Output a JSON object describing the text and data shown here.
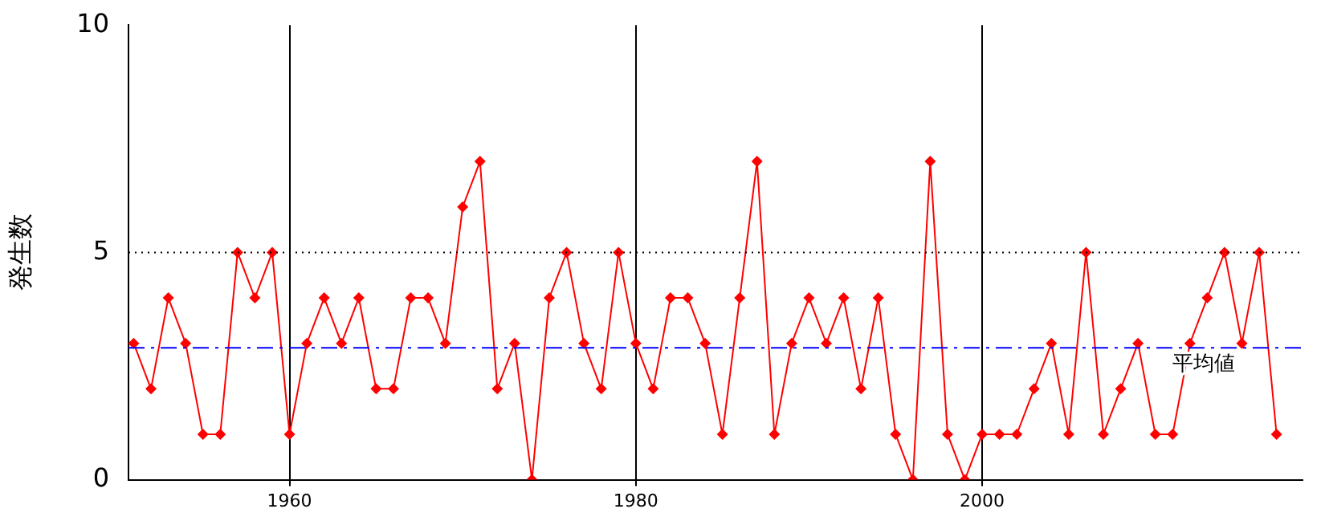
{
  "chart_data": {
    "type": "line",
    "ylabel": "発生数",
    "x": [
      1951,
      1952,
      1953,
      1954,
      1955,
      1956,
      1957,
      1958,
      1959,
      1960,
      1961,
      1962,
      1963,
      1964,
      1965,
      1966,
      1967,
      1968,
      1969,
      1970,
      1971,
      1972,
      1973,
      1974,
      1975,
      1976,
      1977,
      1978,
      1979,
      1980,
      1981,
      1982,
      1983,
      1984,
      1985,
      1986,
      1987,
      1988,
      1989,
      1990,
      1991,
      1992,
      1993,
      1994,
      1995,
      1996,
      1997,
      1998,
      1999,
      2000,
      2001,
      2002,
      2003,
      2004,
      2005,
      2006,
      2007,
      2008,
      2009,
      2010,
      2011,
      2012,
      2013,
      2014,
      2015,
      2016,
      2017
    ],
    "series": [
      {
        "color": "#ff0000",
        "values": [
          3,
          2,
          4,
          3,
          1,
          1,
          5,
          4,
          5,
          1,
          3,
          4,
          3,
          4,
          2,
          2,
          4,
          4,
          3,
          6,
          7,
          2,
          3,
          0,
          4,
          5,
          3,
          2,
          5,
          3,
          2,
          4,
          4,
          3,
          1,
          4,
          7,
          1,
          3,
          4,
          3,
          4,
          2,
          4,
          1,
          0,
          7,
          1,
          0,
          1,
          1,
          1,
          2,
          3,
          1,
          5,
          1,
          2,
          3,
          1,
          1,
          3,
          4,
          5,
          3,
          5,
          1
        ]
      }
    ],
    "xlim": [
      1950.7,
      2018.5
    ],
    "xticks": [
      1960,
      1980,
      2000
    ],
    "ylim": [
      0,
      10
    ],
    "yticks": [
      0,
      5,
      10
    ],
    "grid": "x",
    "legend": false,
    "marker": "diamond",
    "line_style": "solid",
    "ref_lines": [
      {
        "axis": "y",
        "value": 5,
        "color": "#000000",
        "line_style": "dotted"
      },
      {
        "axis": "y",
        "value": 2.9,
        "label": "平均値",
        "color": "#0000ff",
        "line_style": "dashdot"
      }
    ]
  }
}
